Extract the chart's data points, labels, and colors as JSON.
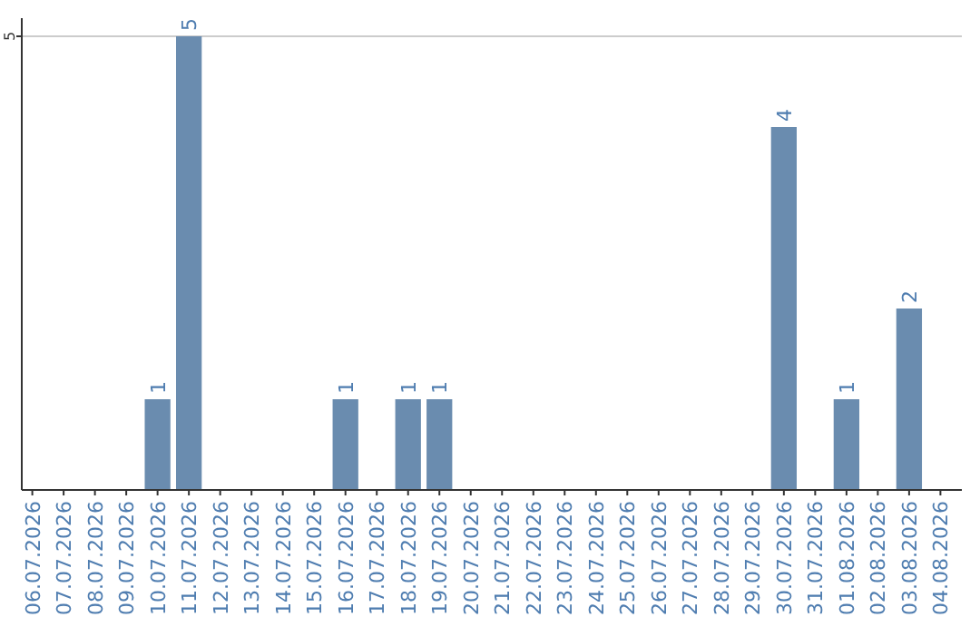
{
  "chart_data": {
    "type": "bar",
    "categories": [
      "06.07.2026",
      "07.07.2026",
      "08.07.2026",
      "09.07.2026",
      "10.07.2026",
      "11.07.2026",
      "12.07.2026",
      "13.07.2026",
      "14.07.2026",
      "15.07.2026",
      "16.07.2026",
      "17.07.2026",
      "18.07.2026",
      "19.07.2026",
      "20.07.2026",
      "21.07.2026",
      "22.07.2026",
      "23.07.2026",
      "24.07.2026",
      "25.07.2026",
      "26.07.2026",
      "27.07.2026",
      "28.07.2026",
      "29.07.2026",
      "30.07.2026",
      "31.07.2026",
      "01.08.2026",
      "02.08.2026",
      "03.08.2026",
      "04.08.2026"
    ],
    "values": [
      0,
      0,
      0,
      0,
      1,
      5,
      0,
      0,
      0,
      0,
      1,
      0,
      1,
      1,
      0,
      0,
      0,
      0,
      0,
      0,
      0,
      0,
      0,
      0,
      4,
      0,
      1,
      0,
      2,
      0
    ],
    "value_labels": [
      null,
      null,
      null,
      null,
      "1",
      "5",
      null,
      null,
      null,
      null,
      "1",
      null,
      "1",
      "1",
      null,
      null,
      null,
      null,
      null,
      null,
      null,
      null,
      null,
      null,
      "4",
      null,
      "1",
      null,
      "2",
      null
    ],
    "color": "#6a8caf",
    "ylim": [
      0,
      5
    ],
    "yticks": [
      5
    ],
    "ref_lines": [
      {
        "axis": "y",
        "value": 5,
        "color": "#cccccc"
      }
    ]
  }
}
